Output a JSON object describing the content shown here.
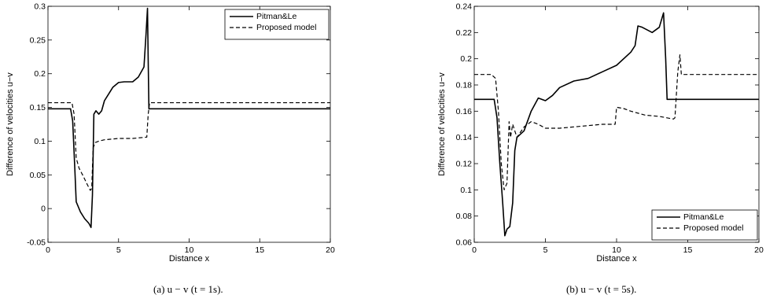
{
  "chart_data": [
    {
      "type": "line",
      "caption": "(a)  u − v (t = 1s).",
      "xlabel": "Distance x",
      "ylabel": "Difference of velocities u−v",
      "xlim": [
        0,
        20
      ],
      "ylim": [
        -0.05,
        0.3
      ],
      "xticks": [
        0,
        5,
        10,
        15,
        20
      ],
      "xtick_labels": [
        "0",
        "5",
        "10",
        "15",
        "20"
      ],
      "yticks": [
        -0.05,
        0,
        0.05,
        0.1,
        0.15,
        0.2,
        0.25,
        0.3
      ],
      "ytick_labels": [
        "-0.05",
        "0",
        "0.05",
        "0.1",
        "0.15",
        "0.2",
        "0.25",
        "0.3"
      ],
      "legend_position": "top-right",
      "series": [
        {
          "name": "Pitman&Le",
          "style": "solid",
          "x": [
            0,
            1.6,
            1.75,
            1.9,
            2.0,
            2.1,
            2.3,
            2.6,
            2.9,
            3.05,
            3.15,
            3.25,
            3.4,
            3.6,
            3.8,
            4.0,
            4.3,
            4.6,
            5.0,
            5.4,
            6.0,
            6.4,
            6.8,
            6.95,
            7.05,
            7.1,
            7.15,
            20
          ],
          "y": [
            0.148,
            0.148,
            0.13,
            0.06,
            0.01,
            0.005,
            -0.005,
            -0.015,
            -0.022,
            -0.028,
            0.02,
            0.14,
            0.145,
            0.14,
            0.145,
            0.16,
            0.17,
            0.18,
            0.187,
            0.188,
            0.188,
            0.195,
            0.21,
            0.26,
            0.297,
            0.22,
            0.148,
            0.148
          ]
        },
        {
          "name": "Proposed model",
          "style": "dashed",
          "x": [
            0,
            1.7,
            1.85,
            2.0,
            2.2,
            2.5,
            2.8,
            3.0,
            3.1,
            3.2,
            3.35,
            3.6,
            4.0,
            4.5,
            5.0,
            6.0,
            7.0,
            7.1,
            7.2,
            20
          ],
          "y": [
            0.157,
            0.157,
            0.14,
            0.075,
            0.06,
            0.048,
            0.035,
            0.027,
            0.03,
            0.09,
            0.098,
            0.1,
            0.102,
            0.103,
            0.104,
            0.104,
            0.106,
            0.14,
            0.157,
            0.157
          ]
        }
      ]
    },
    {
      "type": "line",
      "caption": "(b)  u − v (t = 5s).",
      "xlabel": "Distance x",
      "ylabel": "Difference of velocities u−v",
      "xlim": [
        0,
        20
      ],
      "ylim": [
        0.06,
        0.24
      ],
      "xticks": [
        0,
        5,
        10,
        15,
        20
      ],
      "xtick_labels": [
        "0",
        "5",
        "10",
        "15",
        "20"
      ],
      "yticks": [
        0.06,
        0.08,
        0.1,
        0.12,
        0.14,
        0.16,
        0.18,
        0.2,
        0.22,
        0.24
      ],
      "ytick_labels": [
        "0.06",
        "0.08",
        "0.1",
        "0.12",
        "0.14",
        "0.16",
        "0.18",
        "0.2",
        "0.22",
        "0.24"
      ],
      "legend_position": "bottom-right",
      "series": [
        {
          "name": "Pitman&Le",
          "style": "solid",
          "x": [
            0,
            1.4,
            1.6,
            1.8,
            2.0,
            2.15,
            2.3,
            2.5,
            2.7,
            2.85,
            3.0,
            3.2,
            3.5,
            4.0,
            4.5,
            5.0,
            5.5,
            6.0,
            7.0,
            8.0,
            9.0,
            10.0,
            11.0,
            11.3,
            11.5,
            11.8,
            12.5,
            13.0,
            13.3,
            13.45,
            13.55,
            20
          ],
          "y": [
            0.169,
            0.169,
            0.155,
            0.12,
            0.09,
            0.065,
            0.07,
            0.072,
            0.09,
            0.13,
            0.14,
            0.142,
            0.145,
            0.16,
            0.17,
            0.168,
            0.172,
            0.178,
            0.183,
            0.185,
            0.19,
            0.195,
            0.205,
            0.21,
            0.225,
            0.224,
            0.22,
            0.224,
            0.235,
            0.2,
            0.169,
            0.169
          ]
        },
        {
          "name": "Proposed model",
          "style": "dashed",
          "x": [
            0,
            1.2,
            1.5,
            1.7,
            1.9,
            2.1,
            2.3,
            2.45,
            2.55,
            2.7,
            2.85,
            3.0,
            3.5,
            4.0,
            4.5,
            5.0,
            6.0,
            7.0,
            8.0,
            9.0,
            9.9,
            10.0,
            10.5,
            11.0,
            12.0,
            13.0,
            13.5,
            14.0,
            14.1,
            14.3,
            14.45,
            14.55,
            20
          ],
          "y": [
            0.188,
            0.188,
            0.185,
            0.16,
            0.12,
            0.1,
            0.105,
            0.152,
            0.14,
            0.15,
            0.145,
            0.14,
            0.148,
            0.152,
            0.15,
            0.147,
            0.147,
            0.148,
            0.149,
            0.15,
            0.15,
            0.163,
            0.162,
            0.16,
            0.157,
            0.156,
            0.155,
            0.154,
            0.155,
            0.19,
            0.203,
            0.188,
            0.188
          ]
        }
      ]
    }
  ]
}
